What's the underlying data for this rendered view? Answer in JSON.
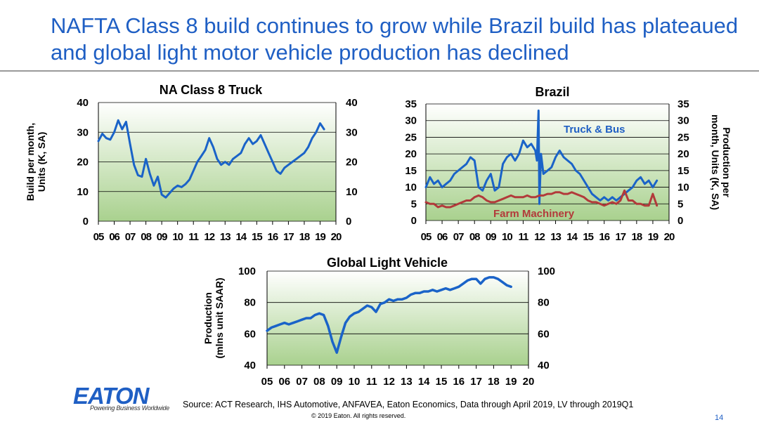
{
  "slide": {
    "title": "NAFTA Class 8 build continues to grow while Brazil build has plateaued and global light motor vehicle production has declined",
    "source": "Source: ACT Research, IHS Automotive, ANFAVEA, Eaton Economics, Data through April 2019, LV through 2019Q1",
    "copyright": "© 2019 Eaton. All rights reserved.",
    "page_number": "14",
    "logo_text": "EATON",
    "tagline": "Powering Business Worldwide"
  },
  "colors": {
    "title": "#1f5fc4",
    "series_blue": "#1a63c8",
    "series_red": "#b23a3a",
    "plot_top": "#ffffff",
    "plot_bottom": "#a9d18e",
    "grid": "#000000"
  },
  "chart_data": [
    {
      "id": "na",
      "type": "line",
      "title": "NA Class 8 Truck",
      "ylabel": "Build per month, Units (K, SA)",
      "ylim": [
        0,
        40
      ],
      "yticks": [
        0,
        10,
        20,
        30,
        40
      ],
      "xlim": [
        2005,
        2020
      ],
      "xticks": [
        "05",
        "06",
        "07",
        "08",
        "09",
        "10",
        "11",
        "12",
        "13",
        "14",
        "15",
        "16",
        "17",
        "18",
        "19",
        "20"
      ],
      "grid": true,
      "series": [
        {
          "color": "#1a63c8",
          "x": [
            2005.0,
            2005.25,
            2005.5,
            2005.75,
            2006.0,
            2006.25,
            2006.5,
            2006.75,
            2007.0,
            2007.25,
            2007.5,
            2007.75,
            2008.0,
            2008.25,
            2008.5,
            2008.75,
            2009.0,
            2009.25,
            2009.5,
            2009.75,
            2010.0,
            2010.25,
            2010.5,
            2010.75,
            2011.0,
            2011.25,
            2011.5,
            2011.75,
            2012.0,
            2012.25,
            2012.5,
            2012.75,
            2013.0,
            2013.25,
            2013.5,
            2013.75,
            2014.0,
            2014.25,
            2014.5,
            2014.75,
            2015.0,
            2015.25,
            2015.5,
            2015.75,
            2016.0,
            2016.25,
            2016.5,
            2016.75,
            2017.0,
            2017.25,
            2017.5,
            2017.75,
            2018.0,
            2018.25,
            2018.5,
            2018.75,
            2019.0,
            2019.25
          ],
          "y": [
            27,
            29.5,
            28,
            27.5,
            30,
            34,
            31,
            33.5,
            26,
            19,
            15.5,
            15,
            21,
            16,
            12,
            15,
            9,
            8,
            9.5,
            11,
            12,
            11.5,
            12.5,
            14,
            17,
            20,
            22,
            24,
            28,
            25,
            21,
            19,
            20,
            19,
            21,
            22,
            23,
            26,
            28,
            26,
            27,
            29,
            26,
            23,
            20,
            17,
            16,
            18,
            19,
            20,
            21,
            22,
            23,
            25,
            28,
            30,
            33,
            31
          ]
        }
      ]
    },
    {
      "id": "brazil",
      "type": "line",
      "title": "Brazil",
      "ylabel": "Production per month, Units (K, SA)",
      "ylim": [
        0,
        35
      ],
      "yticks": [
        0,
        5,
        10,
        15,
        20,
        25,
        30,
        35
      ],
      "xlim": [
        2005,
        2020
      ],
      "xticks": [
        "05",
        "06",
        "07",
        "08",
        "09",
        "10",
        "11",
        "12",
        "13",
        "14",
        "15",
        "16",
        "17",
        "18",
        "19",
        "20"
      ],
      "grid": true,
      "annotations": [
        "Truck & Bus",
        "Farm Machinery"
      ],
      "series": [
        {
          "name": "Truck & Bus",
          "color": "#1a63c8",
          "x": [
            2005.0,
            2005.25,
            2005.5,
            2005.75,
            2006.0,
            2006.25,
            2006.5,
            2006.75,
            2007.0,
            2007.25,
            2007.5,
            2007.75,
            2008.0,
            2008.25,
            2008.5,
            2008.75,
            2009.0,
            2009.25,
            2009.5,
            2009.75,
            2010.0,
            2010.25,
            2010.5,
            2010.75,
            2011.0,
            2011.25,
            2011.5,
            2011.75,
            2011.85,
            2011.95,
            2012.0,
            2012.1,
            2012.25,
            2012.5,
            2012.75,
            2013.0,
            2013.25,
            2013.5,
            2013.75,
            2014.0,
            2014.25,
            2014.5,
            2014.75,
            2015.0,
            2015.25,
            2015.5,
            2015.75,
            2016.0,
            2016.25,
            2016.5,
            2016.75,
            2017.0,
            2017.25,
            2017.5,
            2017.75,
            2018.0,
            2018.25,
            2018.5,
            2018.75,
            2019.0,
            2019.25
          ],
          "y": [
            10,
            13,
            11,
            12,
            10,
            11,
            12,
            14,
            15,
            16,
            17,
            19,
            18,
            10,
            9,
            12,
            14,
            9,
            10,
            17,
            19,
            20,
            18,
            20,
            24,
            22,
            23,
            21,
            18,
            33,
            5,
            20,
            14,
            15,
            16,
            19,
            21,
            19,
            18,
            17,
            15,
            14,
            12,
            10,
            8,
            7,
            6,
            7,
            6,
            7,
            6,
            7,
            8,
            9,
            10,
            12,
            13,
            11,
            12,
            10,
            12
          ]
        },
        {
          "name": "Farm Machinery",
          "color": "#b23a3a",
          "x": [
            2005.0,
            2005.25,
            2005.5,
            2005.75,
            2006.0,
            2006.25,
            2006.5,
            2006.75,
            2007.0,
            2007.25,
            2007.5,
            2007.75,
            2008.0,
            2008.25,
            2008.5,
            2008.75,
            2009.0,
            2009.25,
            2009.5,
            2009.75,
            2010.0,
            2010.25,
            2010.5,
            2010.75,
            2011.0,
            2011.25,
            2011.5,
            2011.75,
            2012.0,
            2012.25,
            2012.5,
            2012.75,
            2013.0,
            2013.25,
            2013.5,
            2013.75,
            2014.0,
            2014.25,
            2014.5,
            2014.75,
            2015.0,
            2015.25,
            2015.5,
            2015.75,
            2016.0,
            2016.25,
            2016.5,
            2016.75,
            2017.0,
            2017.25,
            2017.5,
            2017.75,
            2018.0,
            2018.25,
            2018.5,
            2018.75,
            2019.0,
            2019.25
          ],
          "y": [
            5.5,
            5,
            5,
            4,
            4.5,
            4,
            4,
            4.5,
            5,
            5.5,
            6,
            6,
            7,
            7.5,
            7,
            6,
            5.5,
            5.5,
            6,
            6.5,
            7,
            7.5,
            7,
            7,
            7,
            7.5,
            7,
            7,
            7.5,
            7.5,
            8,
            8,
            8.5,
            8.5,
            8,
            8,
            8.5,
            8,
            7.5,
            7,
            6,
            5.5,
            5.5,
            5,
            4.5,
            5,
            5.5,
            5,
            6,
            9,
            6,
            6,
            5,
            5,
            4.5,
            4.5,
            8,
            4.5
          ]
        }
      ]
    },
    {
      "id": "global",
      "type": "line",
      "title": "Global Light Vehicle",
      "ylabel": "Production (mlns unit SAAR)",
      "ylim": [
        40,
        100
      ],
      "yticks": [
        40,
        60,
        80,
        100
      ],
      "xlim": [
        2005,
        2020
      ],
      "xticks": [
        "05",
        "06",
        "07",
        "08",
        "09",
        "10",
        "11",
        "12",
        "13",
        "14",
        "15",
        "16",
        "17",
        "18",
        "19",
        "20"
      ],
      "grid": true,
      "series": [
        {
          "color": "#1a63c8",
          "x": [
            2005.0,
            2005.25,
            2005.5,
            2005.75,
            2006.0,
            2006.25,
            2006.5,
            2006.75,
            2007.0,
            2007.25,
            2007.5,
            2007.75,
            2008.0,
            2008.25,
            2008.5,
            2008.75,
            2009.0,
            2009.25,
            2009.5,
            2009.75,
            2010.0,
            2010.25,
            2010.5,
            2010.75,
            2011.0,
            2011.25,
            2011.5,
            2011.75,
            2012.0,
            2012.25,
            2012.5,
            2012.75,
            2013.0,
            2013.25,
            2013.5,
            2013.75,
            2014.0,
            2014.25,
            2014.5,
            2014.75,
            2015.0,
            2015.25,
            2015.5,
            2015.75,
            2016.0,
            2016.25,
            2016.5,
            2016.75,
            2017.0,
            2017.25,
            2017.5,
            2017.75,
            2018.0,
            2018.25,
            2018.5,
            2018.75,
            2019.0
          ],
          "y": [
            62,
            64,
            65,
            66,
            67,
            66,
            67,
            68,
            69,
            70,
            70,
            72,
            73,
            72,
            65,
            55,
            48,
            58,
            67,
            71,
            73,
            74,
            76,
            78,
            77,
            74,
            79,
            80,
            82,
            81,
            82,
            82,
            83,
            85,
            86,
            86,
            87,
            87,
            88,
            87,
            88,
            89,
            88,
            89,
            90,
            92,
            94,
            95,
            95,
            92,
            95,
            96,
            96,
            95,
            93,
            91,
            90
          ]
        }
      ]
    }
  ]
}
